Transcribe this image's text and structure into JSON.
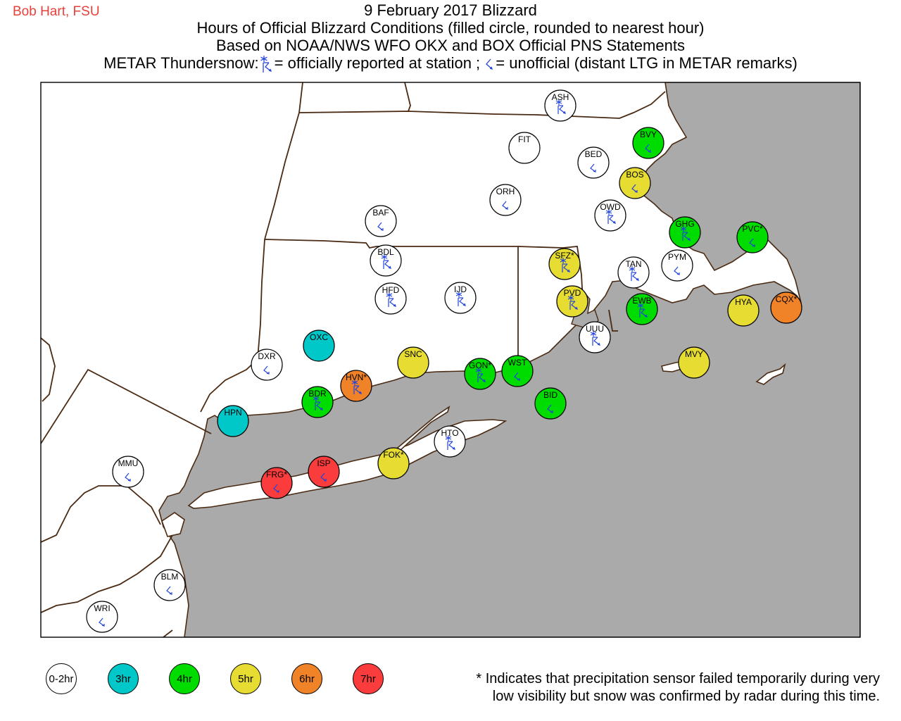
{
  "credit": "Bob Hart, FSU",
  "title": {
    "line1": "9 February 2017 Blizzard",
    "line2": "Hours of Official Blizzard Conditions (filled circle, rounded to nearest hour)",
    "line3": "Based on NOAA/NWS WFO OKX and BOX Official PNS Statements",
    "line4_prefix": "METAR Thundersnow:",
    "line4_official": "= officially reported at station ;",
    "line4_unofficial": "= unofficial (distant LTG in METAR remarks)"
  },
  "colors": {
    "0-2hr": "#ffffff",
    "3hr": "#00c8c8",
    "4hr": "#00dc00",
    "5hr": "#e6dc32",
    "6hr": "#f08228",
    "7hr": "#fa3c3c",
    "ocean": "#aaaaaa",
    "border": "#4a2a12",
    "symbol": "#2244dd"
  },
  "legend": [
    {
      "label": "0-2hr",
      "cat": "0-2hr"
    },
    {
      "label": "3hr",
      "cat": "3hr"
    },
    {
      "label": "4hr",
      "cat": "4hr"
    },
    {
      "label": "5hr",
      "cat": "5hr"
    },
    {
      "label": "6hr",
      "cat": "6hr"
    },
    {
      "label": "7hr",
      "cat": "7hr"
    }
  ],
  "footnote": {
    "line1": "* Indicates that precipitation sensor failed temporarily during very",
    "line2": "low visibility but snow was confirmed by radar during this time."
  },
  "stations": [
    {
      "id": "ASH",
      "cat": "0-2hr",
      "ts": "official"
    },
    {
      "id": "FIT",
      "cat": "0-2hr",
      "ts": "none"
    },
    {
      "id": "BED",
      "cat": "0-2hr",
      "ts": "unofficial"
    },
    {
      "id": "BVY",
      "cat": "4hr",
      "ts": "unofficial"
    },
    {
      "id": "BOS",
      "cat": "5hr",
      "ts": "unofficial"
    },
    {
      "id": "ORH",
      "cat": "0-2hr",
      "ts": "unofficial"
    },
    {
      "id": "OWD",
      "cat": "0-2hr",
      "ts": "official"
    },
    {
      "id": "BAF",
      "cat": "0-2hr",
      "ts": "unofficial"
    },
    {
      "id": "GHG",
      "cat": "4hr",
      "ts": "official"
    },
    {
      "id": "PVC*",
      "cat": "4hr",
      "ts": "unofficial"
    },
    {
      "id": "BDL",
      "cat": "0-2hr",
      "ts": "official"
    },
    {
      "id": "SFZ*",
      "cat": "5hr",
      "ts": "official"
    },
    {
      "id": "TAN",
      "cat": "0-2hr",
      "ts": "official"
    },
    {
      "id": "PYM",
      "cat": "0-2hr",
      "ts": "unofficial"
    },
    {
      "id": "HFD",
      "cat": "0-2hr",
      "ts": "official"
    },
    {
      "id": "IJD",
      "cat": "0-2hr",
      "ts": "official"
    },
    {
      "id": "PVD",
      "cat": "5hr",
      "ts": "official"
    },
    {
      "id": "EWB",
      "cat": "4hr",
      "ts": "official"
    },
    {
      "id": "HYA",
      "cat": "5hr",
      "ts": "none"
    },
    {
      "id": "CQX*",
      "cat": "6hr",
      "ts": "none"
    },
    {
      "id": "UUU",
      "cat": "0-2hr",
      "ts": "official"
    },
    {
      "id": "OXC",
      "cat": "3hr",
      "ts": "none"
    },
    {
      "id": "DXR",
      "cat": "0-2hr",
      "ts": "unofficial"
    },
    {
      "id": "SNC",
      "cat": "5hr",
      "ts": "none"
    },
    {
      "id": "GON*",
      "cat": "4hr",
      "ts": "official"
    },
    {
      "id": "WST",
      "cat": "4hr",
      "ts": "unofficial"
    },
    {
      "id": "MVY",
      "cat": "5hr",
      "ts": "none"
    },
    {
      "id": "HVN*",
      "cat": "6hr",
      "ts": "official"
    },
    {
      "id": "BDR",
      "cat": "4hr",
      "ts": "official"
    },
    {
      "id": "BID",
      "cat": "4hr",
      "ts": "unofficial"
    },
    {
      "id": "HPN",
      "cat": "3hr",
      "ts": "none"
    },
    {
      "id": "HTO",
      "cat": "0-2hr",
      "ts": "official"
    },
    {
      "id": "FOK*",
      "cat": "5hr",
      "ts": "none"
    },
    {
      "id": "MMU",
      "cat": "0-2hr",
      "ts": "unofficial"
    },
    {
      "id": "FRG*",
      "cat": "7hr",
      "ts": "unofficial"
    },
    {
      "id": "ISP",
      "cat": "7hr",
      "ts": "unofficial"
    },
    {
      "id": "BLM",
      "cat": "0-2hr",
      "ts": "unofficial"
    },
    {
      "id": "WRI",
      "cat": "0-2hr",
      "ts": "unofficial"
    }
  ]
}
